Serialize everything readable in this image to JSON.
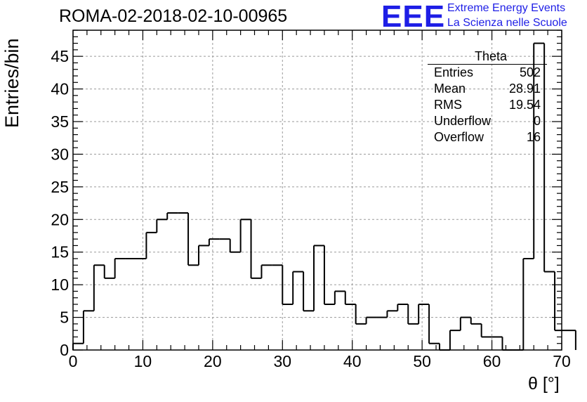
{
  "header": {
    "run_title": "ROMA-02-2018-02-10-00965",
    "logo_text": "EEE",
    "logo_line1": "Extreme Energy Events",
    "logo_line2": "La Scienza nelle Scuole",
    "logo_color": "#1e1ee6"
  },
  "stats_box": {
    "title": "Theta",
    "rows": [
      {
        "label": "Entries",
        "value": "502"
      },
      {
        "label": "Mean",
        "value": "28.91"
      },
      {
        "label": "RMS",
        "value": "19.54"
      },
      {
        "label": "Underflow",
        "value": "0"
      },
      {
        "label": "Overflow",
        "value": "16"
      }
    ]
  },
  "chart_data": {
    "type": "histogram",
    "xlabel": "θ [°]",
    "ylabel": "Entries/bin",
    "xlim": [
      0,
      70
    ],
    "ylim": [
      0,
      49
    ],
    "x_ticks": [
      0,
      10,
      20,
      30,
      40,
      50,
      60,
      70
    ],
    "y_ticks": [
      0,
      5,
      10,
      15,
      20,
      25,
      30,
      35,
      40,
      45
    ],
    "grid": true,
    "bin_width": 1.5,
    "bin_edges_start": 0,
    "values": [
      1,
      6,
      13,
      11,
      14,
      14,
      14,
      18,
      20,
      21,
      21,
      13,
      16,
      17,
      17,
      15,
      20,
      11,
      13,
      13,
      7,
      12,
      6,
      16,
      7,
      9,
      7,
      4,
      5,
      5,
      6,
      7,
      4,
      7,
      1,
      0,
      3,
      5,
      4,
      2,
      2,
      0,
      0,
      14,
      47,
      12,
      3,
      3
    ]
  }
}
